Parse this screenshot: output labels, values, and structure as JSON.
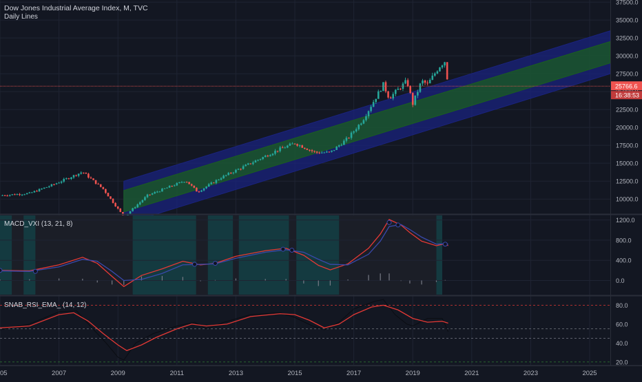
{
  "header": {
    "symbol_title": "Dow Jones Industrial Average Index, M, TVC",
    "overlay_label": "Daily Lines"
  },
  "colors": {
    "background": "#131722",
    "grid": "#1f2433",
    "up_candle": "#26a69a",
    "down_candle": "#ef5350",
    "channel_outer": "#1a237e",
    "channel_inner": "#1b5e20",
    "price_line": "#ef5350",
    "macd_fast": "#e53935",
    "macd_slow": "#3949ab",
    "rsi_ema": "#e53935",
    "rsi_raw": "#000000",
    "macd_bg_bull": "#143a40",
    "macd_bg_bear": "#1b1e27"
  },
  "chart_data": [
    {
      "type": "candlestick",
      "title": "Dow Jones Industrial Average Index, M, TVC",
      "x_ticks": [
        "2005",
        "2007",
        "2009",
        "2011",
        "2013",
        "2015",
        "2017",
        "2019",
        "2021",
        "2023",
        "2025"
      ],
      "x_range": [
        2005.0,
        2025.7
      ],
      "y_ticks": [
        "10000.0",
        "12500.0",
        "15000.0",
        "17500.0",
        "20000.0",
        "22500.0",
        "25000.0",
        "27500.0",
        "30000.0",
        "32500.0",
        "35000.0",
        "37500.0"
      ],
      "ylim": [
        8000,
        37800
      ],
      "last_price_label": "25766.6",
      "countdown_label": "16:38:53",
      "series_anchor_points": [
        {
          "x": 2005.0,
          "y": 10500
        },
        {
          "x": 2006.0,
          "y": 10800
        },
        {
          "x": 2006.8,
          "y": 12000
        },
        {
          "x": 2007.8,
          "y": 13800
        },
        {
          "x": 2008.5,
          "y": 11400
        },
        {
          "x": 2009.2,
          "y": 7500
        },
        {
          "x": 2010.0,
          "y": 10500
        },
        {
          "x": 2011.3,
          "y": 12600
        },
        {
          "x": 2011.7,
          "y": 11000
        },
        {
          "x": 2012.5,
          "y": 13000
        },
        {
          "x": 2013.5,
          "y": 15000
        },
        {
          "x": 2014.5,
          "y": 17000
        },
        {
          "x": 2015.0,
          "y": 17800
        },
        {
          "x": 2015.7,
          "y": 16500
        },
        {
          "x": 2016.2,
          "y": 16500
        },
        {
          "x": 2016.8,
          "y": 18500
        },
        {
          "x": 2017.3,
          "y": 21000
        },
        {
          "x": 2018.0,
          "y": 26000
        },
        {
          "x": 2018.2,
          "y": 24100
        },
        {
          "x": 2018.8,
          "y": 26500
        },
        {
          "x": 2019.0,
          "y": 23300
        },
        {
          "x": 2019.3,
          "y": 26500
        },
        {
          "x": 2019.5,
          "y": 26000
        },
        {
          "x": 2019.9,
          "y": 28500
        },
        {
          "x": 2020.1,
          "y": 29300
        },
        {
          "x": 2020.2,
          "y": 25766
        }
      ],
      "channel": {
        "start_x": 2009.2,
        "end_x": 2025.7,
        "inner_lower_start": 8200,
        "inner_lower_end": 29000,
        "inner_upper_start": 11200,
        "inner_upper_end": 32000,
        "outer_lower_start": 6500,
        "outer_lower_end": 27500,
        "outer_upper_start": 12500,
        "outer_upper_end": 33500
      }
    },
    {
      "type": "line",
      "title": "MACD_VXI (13, 21, 8)",
      "y_ticks": [
        "0.0",
        "400.0",
        "800.0",
        "1200.0"
      ],
      "ylim": [
        -280,
        1290
      ],
      "series": [
        {
          "values": [
            [
              2005,
              200
            ],
            [
              2006,
              190
            ],
            [
              2007,
              310
            ],
            [
              2007.8,
              460
            ],
            [
              2008.3,
              340
            ],
            [
              2008.8,
              80
            ],
            [
              2009.2,
              -120
            ],
            [
              2009.8,
              100
            ],
            [
              2010.5,
              230
            ],
            [
              2011.2,
              380
            ],
            [
              2011.8,
              310
            ],
            [
              2012.3,
              340
            ],
            [
              2013,
              480
            ],
            [
              2014,
              590
            ],
            [
              2014.7,
              640
            ],
            [
              2015.3,
              500
            ],
            [
              2015.8,
              300
            ],
            [
              2016.2,
              210
            ],
            [
              2016.8,
              330
            ],
            [
              2017.5,
              640
            ],
            [
              2017.9,
              920
            ],
            [
              2018.2,
              1210
            ],
            [
              2018.6,
              1100
            ],
            [
              2018.9,
              950
            ],
            [
              2019.3,
              780
            ],
            [
              2019.8,
              690
            ],
            [
              2020.1,
              730
            ],
            [
              2020.2,
              690
            ]
          ]
        },
        {
          "values": [
            [
              2005,
              190
            ],
            [
              2006,
              180
            ],
            [
              2007,
              270
            ],
            [
              2007.8,
              420
            ],
            [
              2008.3,
              380
            ],
            [
              2008.8,
              180
            ],
            [
              2009.2,
              0
            ],
            [
              2009.8,
              20
            ],
            [
              2010.5,
              140
            ],
            [
              2011.2,
              310
            ],
            [
              2011.8,
              320
            ],
            [
              2012.3,
              330
            ],
            [
              2013,
              440
            ],
            [
              2014,
              560
            ],
            [
              2014.7,
              610
            ],
            [
              2015.3,
              560
            ],
            [
              2015.8,
              420
            ],
            [
              2016.2,
              320
            ],
            [
              2016.8,
              310
            ],
            [
              2017.5,
              520
            ],
            [
              2017.9,
              780
            ],
            [
              2018.2,
              1070
            ],
            [
              2018.6,
              1110
            ],
            [
              2018.9,
              1010
            ],
            [
              2019.3,
              860
            ],
            [
              2019.8,
              720
            ],
            [
              2020.1,
              730
            ],
            [
              2020.2,
              720
            ]
          ]
        }
      ],
      "shaded_regions_bull": [
        [
          2005.0,
          2005.4
        ],
        [
          2005.8,
          2006.2
        ],
        [
          2009.5,
          2011.65
        ],
        [
          2012.05,
          2012.9
        ],
        [
          2013.1,
          2014.8
        ],
        [
          2015.05,
          2016.5
        ],
        [
          2019.8,
          2020.0
        ]
      ],
      "histogram": [
        [
          2005,
          20
        ],
        [
          2006,
          25
        ],
        [
          2007,
          40
        ],
        [
          2007.8,
          35
        ],
        [
          2008.3,
          -40
        ],
        [
          2008.8,
          -80
        ],
        [
          2009.2,
          -90
        ],
        [
          2009.8,
          80
        ],
        [
          2010.5,
          90
        ],
        [
          2011.2,
          70
        ],
        [
          2011.8,
          -15
        ],
        [
          2012.3,
          10
        ],
        [
          2013,
          40
        ],
        [
          2014,
          30
        ],
        [
          2014.7,
          30
        ],
        [
          2015.3,
          -60
        ],
        [
          2015.8,
          -110
        ],
        [
          2016.2,
          -100
        ],
        [
          2016.8,
          20
        ],
        [
          2017.5,
          110
        ],
        [
          2017.9,
          140
        ],
        [
          2018.2,
          140
        ],
        [
          2018.6,
          -10
        ],
        [
          2018.9,
          -60
        ],
        [
          2019.3,
          -80
        ],
        [
          2019.8,
          -30
        ],
        [
          2020.1,
          10
        ]
      ]
    },
    {
      "type": "line",
      "title": "SNAB_RSI_EMA_ (14, 12)",
      "y_ticks": [
        "20.0",
        "40.0",
        "60.0",
        "80.0"
      ],
      "ylim": [
        17,
        89
      ],
      "reference_lines": [
        80,
        55,
        45,
        20
      ],
      "series": [
        {
          "values": [
            [
              2005,
              56
            ],
            [
              2006,
              58
            ],
            [
              2007,
              70
            ],
            [
              2007.5,
              72
            ],
            [
              2008,
              63
            ],
            [
              2008.5,
              50
            ],
            [
              2009.0,
              38
            ],
            [
              2009.3,
              32
            ],
            [
              2009.8,
              38
            ],
            [
              2010.3,
              46
            ],
            [
              2011,
              55
            ],
            [
              2011.5,
              60
            ],
            [
              2012,
              58
            ],
            [
              2012.7,
              60
            ],
            [
              2013.5,
              68
            ],
            [
              2014.5,
              71
            ],
            [
              2015,
              70
            ],
            [
              2015.5,
              64
            ],
            [
              2016,
              56
            ],
            [
              2016.5,
              60
            ],
            [
              2017,
              70
            ],
            [
              2017.6,
              78
            ],
            [
              2018.0,
              80
            ],
            [
              2018.5,
              75
            ],
            [
              2019,
              66
            ],
            [
              2019.5,
              62
            ],
            [
              2020.0,
              63
            ],
            [
              2020.2,
              61
            ]
          ]
        },
        {
          "values": [
            [
              2005,
              54
            ],
            [
              2006,
              60
            ],
            [
              2007,
              73
            ],
            [
              2007.6,
              74
            ],
            [
              2008,
              60
            ],
            [
              2008.6,
              40
            ],
            [
              2009.0,
              25
            ],
            [
              2009.2,
              22
            ],
            [
              2009.6,
              40
            ],
            [
              2010.2,
              50
            ],
            [
              2011,
              58
            ],
            [
              2011.6,
              62
            ],
            [
              2012,
              55
            ],
            [
              2012.6,
              62
            ],
            [
              2013.5,
              70
            ],
            [
              2014.5,
              72
            ],
            [
              2015,
              67
            ],
            [
              2015.6,
              58
            ],
            [
              2016,
              54
            ],
            [
              2016.5,
              62
            ],
            [
              2017,
              76
            ],
            [
              2017.7,
              84
            ],
            [
              2018.0,
              86
            ],
            [
              2018.4,
              70
            ],
            [
              2018.8,
              60
            ],
            [
              2019,
              58
            ],
            [
              2019.5,
              66
            ],
            [
              2020.0,
              66
            ],
            [
              2020.2,
              52
            ]
          ]
        }
      ]
    }
  ]
}
